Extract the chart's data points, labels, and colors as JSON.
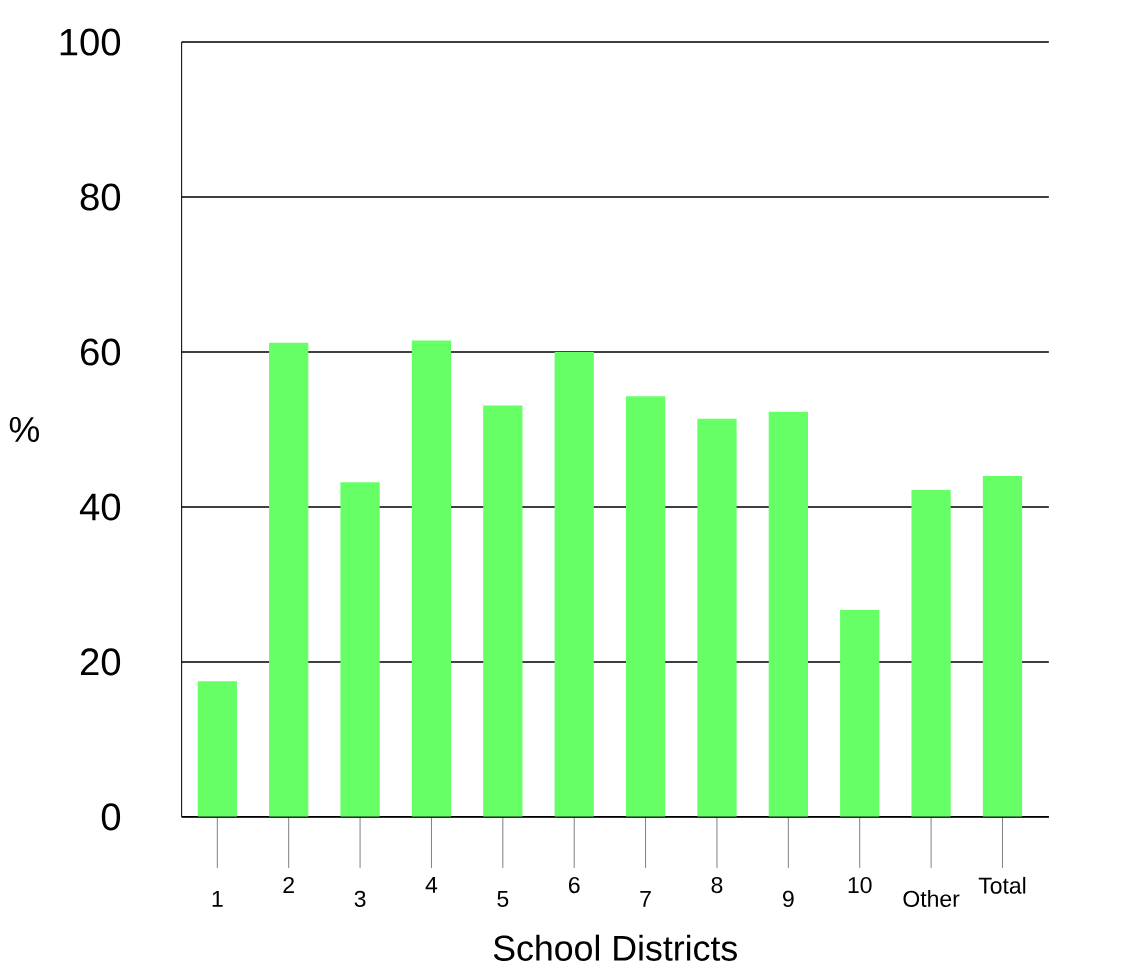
{
  "chart_data": {
    "type": "bar",
    "xlabel": "School Districts",
    "ylabel": "%",
    "categories": [
      "1",
      "2",
      "3",
      "4",
      "5",
      "6",
      "7",
      "8",
      "9",
      "10",
      "Other",
      "Total"
    ],
    "values": [
      17.5,
      61.2,
      43.2,
      61.5,
      53.1,
      60,
      54.3,
      51.4,
      52.3,
      26.7,
      42.2,
      44
    ],
    "color": "#66ff66",
    "ylim": [
      0,
      100
    ],
    "yticks": [
      0,
      20,
      40,
      60,
      80,
      100
    ],
    "grid": "y"
  }
}
